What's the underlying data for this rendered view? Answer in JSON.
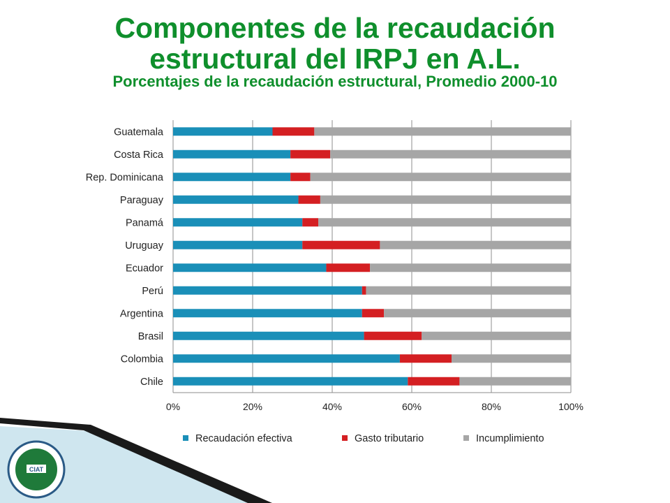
{
  "slide": {
    "title_line1": "Componentes de la recaudación",
    "title_line2": "estructural del IRPJ en A.L.",
    "subtitle": "Porcentajes de la recaudación estructural, Promedio 2000-10"
  },
  "colors": {
    "title": "#0f8f2c",
    "recaudacion": "#1a8fb8",
    "gasto": "#d41f22",
    "incumplimiento": "#a6a6a6"
  },
  "chart_data": {
    "type": "bar",
    "orientation": "horizontal",
    "stacked": "percent",
    "categories": [
      "Guatemala",
      "Costa Rica",
      "Rep. Dominicana",
      "Paraguay",
      "Panamá",
      "Uruguay",
      "Ecuador",
      "Perú",
      "Argentina",
      "Brasil",
      "Colombia",
      "Chile"
    ],
    "series": [
      {
        "name": "Recaudación efectiva",
        "color": "#1a8fb8",
        "values": [
          25,
          29.5,
          29.5,
          31.5,
          32.5,
          32.5,
          38.5,
          47.5,
          47.5,
          48,
          57,
          59
        ]
      },
      {
        "name": "Gasto tributario",
        "color": "#d41f22",
        "values": [
          10.5,
          10,
          5,
          5.5,
          4,
          19.5,
          11,
          1,
          5.5,
          14.5,
          13,
          13
        ]
      },
      {
        "name": "Incumplimiento",
        "color": "#a6a6a6",
        "values": [
          64.5,
          60.5,
          65.5,
          63,
          63.5,
          48,
          50.5,
          51.5,
          47,
          37.5,
          30,
          28
        ]
      }
    ],
    "xlim": [
      0,
      100
    ],
    "xticks": [
      "0%",
      "20%",
      "40%",
      "60%",
      "80%",
      "100%"
    ],
    "grid": true,
    "legend_position": "bottom"
  }
}
